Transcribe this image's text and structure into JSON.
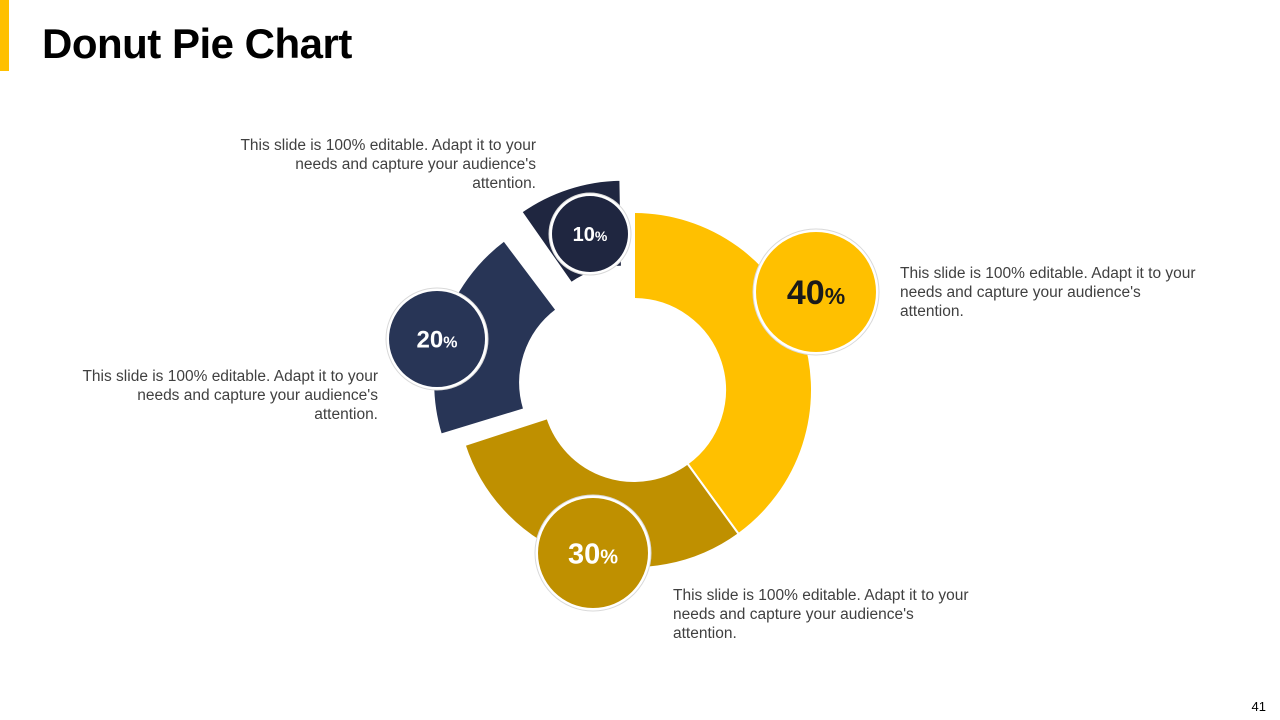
{
  "slide": {
    "title": "Donut Pie Chart",
    "page_number": "41",
    "accent_color": "#FFC000"
  },
  "chart_data": {
    "type": "pie",
    "variant": "donut, exploded segments",
    "segments": [
      {
        "label": "10%",
        "value": 10,
        "color": "#1F2640"
      },
      {
        "label": "20%",
        "value": 20,
        "color": "#283556"
      },
      {
        "label": "30%",
        "value": 30,
        "color": "#BF9000"
      },
      {
        "label": "40%",
        "value": 40,
        "color": "#FFC000"
      }
    ]
  },
  "callouts": [
    {
      "segment": "10%",
      "text": "This slide is 100% editable. Adapt it to your needs and capture your audience's attention."
    },
    {
      "segment": "20%",
      "text": "This slide is 100% editable. Adapt it to your needs and capture your audience's attention."
    },
    {
      "segment": "30%",
      "text": "This slide is 100% editable. Adapt it to your needs and capture your audience's attention."
    },
    {
      "segment": "40%",
      "text": "This slide is 100% editable. Adapt it to your needs and capture your audience's attention."
    }
  ]
}
